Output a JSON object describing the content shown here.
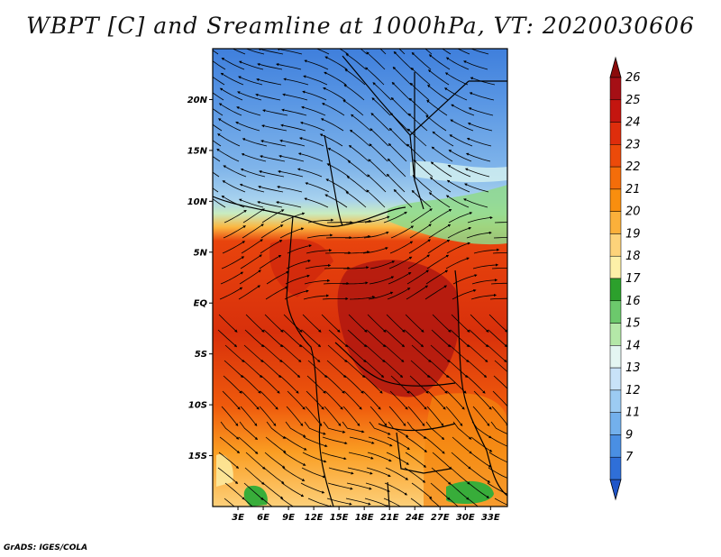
{
  "title": "WBPT [C] and Sreamline at 1000hPa, VT: 2020030606",
  "credit": "GrADS: IGES/COLA",
  "map": {
    "lon_range": [
      0,
      35
    ],
    "lat_range": [
      -20,
      25
    ],
    "lat_ticks": [
      {
        "value": 20,
        "label": "20N"
      },
      {
        "value": 15,
        "label": "15N"
      },
      {
        "value": 10,
        "label": "10N"
      },
      {
        "value": 5,
        "label": "5N"
      },
      {
        "value": 0,
        "label": "EQ"
      },
      {
        "value": -5,
        "label": "5S"
      },
      {
        "value": -10,
        "label": "10S"
      },
      {
        "value": -15,
        "label": "15S"
      }
    ],
    "lon_ticks": [
      {
        "value": 3,
        "label": "3E"
      },
      {
        "value": 6,
        "label": "6E"
      },
      {
        "value": 9,
        "label": "9E"
      },
      {
        "value": 12,
        "label": "12E"
      },
      {
        "value": 15,
        "label": "15E"
      },
      {
        "value": 18,
        "label": "18E"
      },
      {
        "value": 21,
        "label": "21E"
      },
      {
        "value": 24,
        "label": "24E"
      },
      {
        "value": 27,
        "label": "27E"
      },
      {
        "value": 30,
        "label": "30E"
      },
      {
        "value": 33,
        "label": "33E"
      }
    ]
  },
  "colorbar": {
    "levels": [
      "26",
      "25",
      "24",
      "23",
      "22",
      "21",
      "20",
      "19",
      "18",
      "17",
      "16",
      "15",
      "14",
      "13",
      "12",
      "11",
      "9",
      "7"
    ],
    "colors": [
      "#a50f15",
      "#c4150f",
      "#de2d0c",
      "#ec4a0a",
      "#f46d0a",
      "#f98e0e",
      "#fbb03a",
      "#fdd37a",
      "#fdf0a8",
      "#2ca02c",
      "#6cc96c",
      "#b4e8a8",
      "#e4f6f2",
      "#c8e2f8",
      "#9ccbf2",
      "#73b0ec",
      "#4a8fe3",
      "#2f6fd8"
    ],
    "top_color": "#8b0b0b",
    "bottom_color": "#1f55c8"
  }
}
